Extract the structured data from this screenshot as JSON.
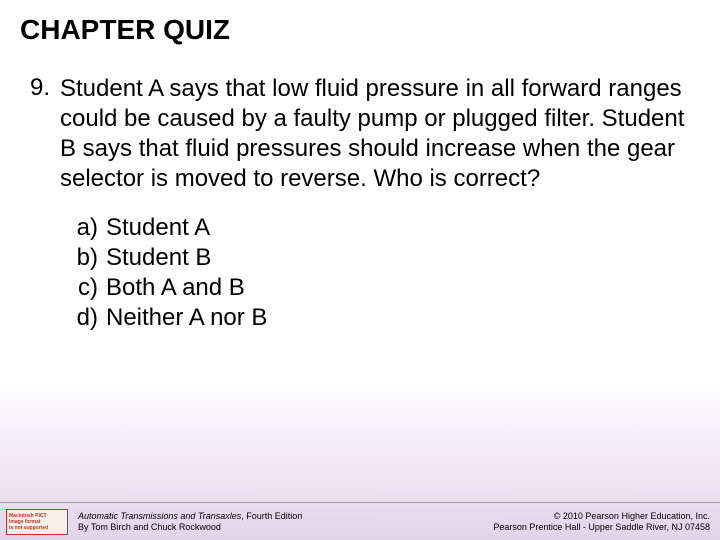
{
  "title": "CHAPTER QUIZ",
  "question": {
    "number": "9.",
    "text": "Student A says that low fluid pressure in all forward ranges could be caused by a faulty pump or plugged filter. Student B says that fluid pressures should increase when the gear selector is moved to reverse. Who is correct?"
  },
  "answers": [
    {
      "letter": "a)",
      "text": "Student A"
    },
    {
      "letter": "b)",
      "text": "Student B"
    },
    {
      "letter": "c)",
      "text": "Both A and B"
    },
    {
      "letter": "d)",
      "text": "Neither A nor B"
    }
  ],
  "footer": {
    "icon_lines": [
      "Macintosh PICT",
      "image format",
      "is not supported"
    ],
    "book_title": "Automatic Transmissions and Transaxles",
    "edition": ", Fourth Edition",
    "authors": "By Tom Birch and Chuck Rockwood",
    "copyright": "© 2010 Pearson Higher Education, Inc.",
    "publisher": "Pearson Prentice Hall - Upper Saddle River, NJ 07458"
  },
  "colors": {
    "text": "#000000",
    "gradient_top": "#ffffff",
    "gradient_bottom": "#e0d4ea",
    "footer_border": "#999999",
    "icon_bg": "#f5f0e8",
    "icon_border": "#c9302c"
  },
  "typography": {
    "title_fontsize": 28,
    "body_fontsize": 24,
    "footer_fontsize": 9,
    "font_family": "Arial"
  }
}
